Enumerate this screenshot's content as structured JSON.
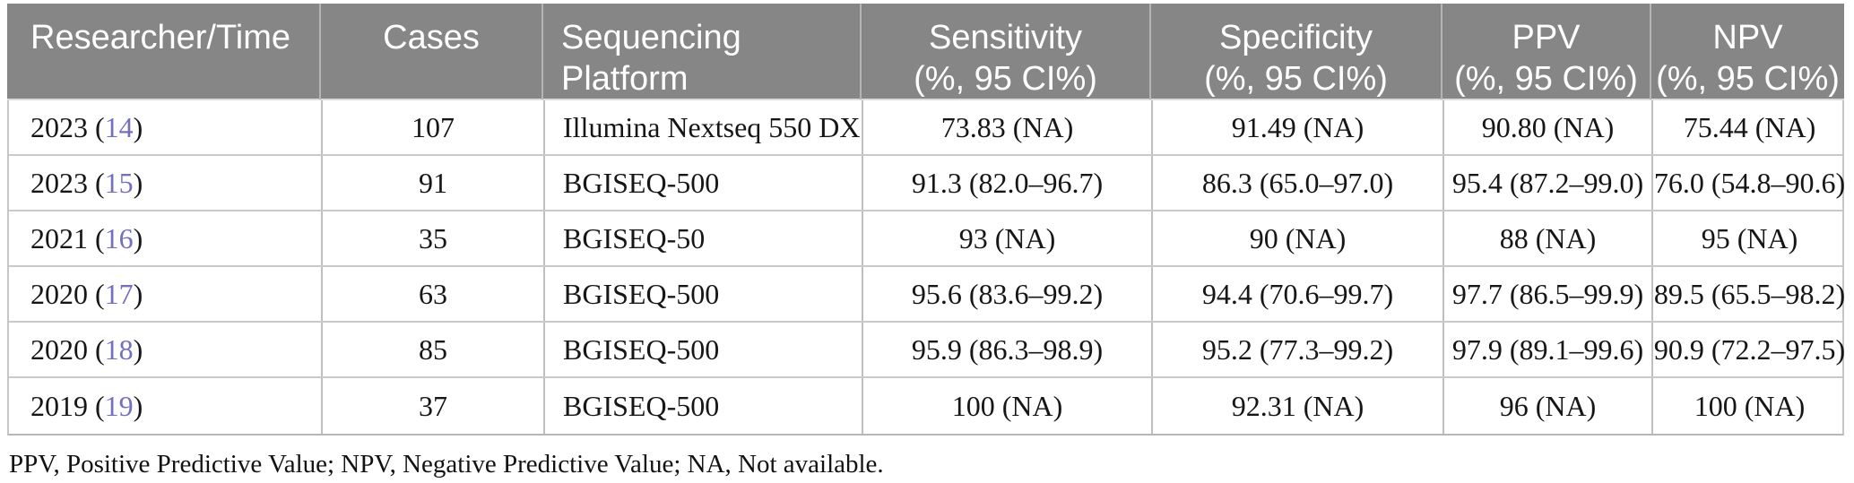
{
  "table": {
    "columns": [
      {
        "line1": "Researcher/Time",
        "line2": ""
      },
      {
        "line1": "Cases",
        "line2": ""
      },
      {
        "line1": "Sequencing",
        "line2": "Platform"
      },
      {
        "line1": "Sensitivity",
        "line2": "(%, 95 CI%)"
      },
      {
        "line1": "Specificity",
        "line2": "(%, 95 CI%)"
      },
      {
        "line1": "PPV",
        "line2": "(%, 95 CI%)"
      },
      {
        "line1": "NPV",
        "line2": "(%, 95 CI%)"
      }
    ],
    "meta": {
      "paren_open": " (",
      "paren_close": ")"
    },
    "rows": [
      {
        "year": "2023",
        "ref": "14",
        "cases": "107",
        "platform": "Illumina Nextseq 550 DX",
        "sensitivity": "73.83 (NA)",
        "specificity": "91.49 (NA)",
        "ppv": "90.80 (NA)",
        "npv": "75.44 (NA)"
      },
      {
        "year": "2023",
        "ref": "15",
        "cases": "91",
        "platform": "BGISEQ-500",
        "sensitivity": "91.3 (82.0–96.7)",
        "specificity": "86.3 (65.0–97.0)",
        "ppv": "95.4 (87.2–99.0)",
        "npv": "76.0 (54.8–90.6)"
      },
      {
        "year": "2021",
        "ref": "16",
        "cases": "35",
        "platform": "BGISEQ-50",
        "sensitivity": "93 (NA)",
        "specificity": "90 (NA)",
        "ppv": "88 (NA)",
        "npv": "95 (NA)"
      },
      {
        "year": "2020",
        "ref": "17",
        "cases": "63",
        "platform": "BGISEQ-500",
        "sensitivity": "95.6 (83.6–99.2)",
        "specificity": "94.4 (70.6–99.7)",
        "ppv": "97.7 (86.5–99.9)",
        "npv": "89.5 (65.5–98.2)"
      },
      {
        "year": "2020",
        "ref": "18",
        "cases": "85",
        "platform": "BGISEQ-500",
        "sensitivity": "95.9 (86.3–98.9)",
        "specificity": "95.2 (77.3–99.2)",
        "ppv": "97.9 (89.1–99.6)",
        "npv": "90.9 (72.2–97.5)"
      },
      {
        "year": "2019",
        "ref": "19",
        "cases": "37",
        "platform": "BGISEQ-500",
        "sensitivity": "100 (NA)",
        "specificity": "92.31 (NA)",
        "ppv": "96 (NA)",
        "npv": "100 (NA)"
      }
    ],
    "footnote": "PPV, Positive Predictive Value; NPV, Negative Predictive Value; NA, Not available."
  },
  "colors": {
    "header_bg": "#868686",
    "header_text": "#ffffff",
    "citation": "#7470bf",
    "body_text": "#161616"
  }
}
